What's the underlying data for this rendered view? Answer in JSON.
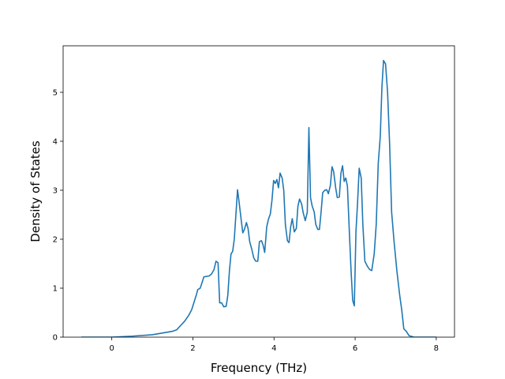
{
  "chart_data": {
    "type": "line",
    "title": "",
    "xlabel": "Frequency (THz)",
    "ylabel": "Density of States",
    "xlim": [
      -1.2,
      8.45
    ],
    "ylim": [
      0,
      5.95
    ],
    "xticks": [
      "0",
      "2",
      "4",
      "6",
      "8"
    ],
    "yticks": [
      "0",
      "1",
      "2",
      "3",
      "4",
      "5"
    ],
    "grid": false,
    "legend": "none",
    "series": [
      {
        "color": "#1f77b4",
        "points": [
          [
            -0.75,
            0
          ],
          [
            0,
            0
          ],
          [
            0.5,
            0.02
          ],
          [
            1.0,
            0.05
          ],
          [
            1.5,
            0.12
          ],
          [
            1.6,
            0.15
          ],
          [
            1.7,
            0.24
          ],
          [
            1.8,
            0.33
          ],
          [
            1.9,
            0.45
          ],
          [
            1.97,
            0.56
          ],
          [
            2.03,
            0.72
          ],
          [
            2.08,
            0.85
          ],
          [
            2.12,
            0.97
          ],
          [
            2.18,
            1.0
          ],
          [
            2.22,
            1.1
          ],
          [
            2.27,
            1.23
          ],
          [
            2.33,
            1.24
          ],
          [
            2.4,
            1.25
          ],
          [
            2.46,
            1.29
          ],
          [
            2.52,
            1.38
          ],
          [
            2.57,
            1.55
          ],
          [
            2.62,
            1.52
          ],
          [
            2.66,
            0.7
          ],
          [
            2.71,
            0.7
          ],
          [
            2.76,
            0.62
          ],
          [
            2.82,
            0.63
          ],
          [
            2.86,
            0.85
          ],
          [
            2.9,
            1.35
          ],
          [
            2.94,
            1.7
          ],
          [
            2.98,
            1.75
          ],
          [
            3.02,
            2.0
          ],
          [
            3.06,
            2.5
          ],
          [
            3.1,
            3.01
          ],
          [
            3.14,
            2.75
          ],
          [
            3.19,
            2.4
          ],
          [
            3.23,
            2.13
          ],
          [
            3.27,
            2.2
          ],
          [
            3.32,
            2.34
          ],
          [
            3.36,
            2.22
          ],
          [
            3.4,
            1.95
          ],
          [
            3.45,
            1.8
          ],
          [
            3.5,
            1.62
          ],
          [
            3.55,
            1.55
          ],
          [
            3.6,
            1.55
          ],
          [
            3.64,
            1.95
          ],
          [
            3.69,
            1.97
          ],
          [
            3.73,
            1.88
          ],
          [
            3.77,
            1.73
          ],
          [
            3.82,
            2.25
          ],
          [
            3.86,
            2.4
          ],
          [
            3.91,
            2.52
          ],
          [
            3.95,
            2.8
          ],
          [
            3.99,
            3.2
          ],
          [
            4.03,
            3.14
          ],
          [
            4.07,
            3.22
          ],
          [
            4.11,
            3.05
          ],
          [
            4.15,
            3.35
          ],
          [
            4.2,
            3.25
          ],
          [
            4.24,
            3.0
          ],
          [
            4.28,
            2.3
          ],
          [
            4.33,
            1.97
          ],
          [
            4.37,
            1.93
          ],
          [
            4.41,
            2.25
          ],
          [
            4.45,
            2.42
          ],
          [
            4.5,
            2.15
          ],
          [
            4.55,
            2.22
          ],
          [
            4.59,
            2.68
          ],
          [
            4.63,
            2.82
          ],
          [
            4.68,
            2.72
          ],
          [
            4.72,
            2.54
          ],
          [
            4.77,
            2.38
          ],
          [
            4.82,
            2.55
          ],
          [
            4.86,
            4.28
          ],
          [
            4.9,
            2.85
          ],
          [
            4.94,
            2.68
          ],
          [
            4.99,
            2.56
          ],
          [
            5.03,
            2.3
          ],
          [
            5.08,
            2.2
          ],
          [
            5.12,
            2.2
          ],
          [
            5.16,
            2.55
          ],
          [
            5.2,
            2.95
          ],
          [
            5.25,
            3.0
          ],
          [
            5.3,
            3.01
          ],
          [
            5.34,
            2.93
          ],
          [
            5.39,
            3.1
          ],
          [
            5.43,
            3.48
          ],
          [
            5.47,
            3.38
          ],
          [
            5.52,
            3.05
          ],
          [
            5.56,
            2.85
          ],
          [
            5.61,
            2.86
          ],
          [
            5.65,
            3.35
          ],
          [
            5.69,
            3.5
          ],
          [
            5.73,
            3.18
          ],
          [
            5.77,
            3.25
          ],
          [
            5.81,
            3.08
          ],
          [
            5.86,
            2.1
          ],
          [
            5.9,
            1.35
          ],
          [
            5.94,
            0.75
          ],
          [
            5.98,
            0.64
          ],
          [
            6.02,
            2.15
          ],
          [
            6.06,
            2.75
          ],
          [
            6.1,
            3.45
          ],
          [
            6.15,
            3.25
          ],
          [
            6.19,
            2.3
          ],
          [
            6.24,
            1.55
          ],
          [
            6.3,
            1.45
          ],
          [
            6.36,
            1.38
          ],
          [
            6.41,
            1.36
          ],
          [
            6.47,
            1.7
          ],
          [
            6.52,
            2.3
          ],
          [
            6.57,
            3.55
          ],
          [
            6.62,
            4.1
          ],
          [
            6.66,
            5.1
          ],
          [
            6.7,
            5.65
          ],
          [
            6.75,
            5.58
          ],
          [
            6.8,
            5.0
          ],
          [
            6.85,
            3.95
          ],
          [
            6.9,
            2.55
          ],
          [
            6.96,
            1.95
          ],
          [
            7.03,
            1.35
          ],
          [
            7.1,
            0.85
          ],
          [
            7.15,
            0.55
          ],
          [
            7.2,
            0.17
          ],
          [
            7.26,
            0.12
          ],
          [
            7.33,
            0.03
          ],
          [
            7.45,
            0
          ],
          [
            8.0,
            0
          ]
        ]
      }
    ]
  }
}
